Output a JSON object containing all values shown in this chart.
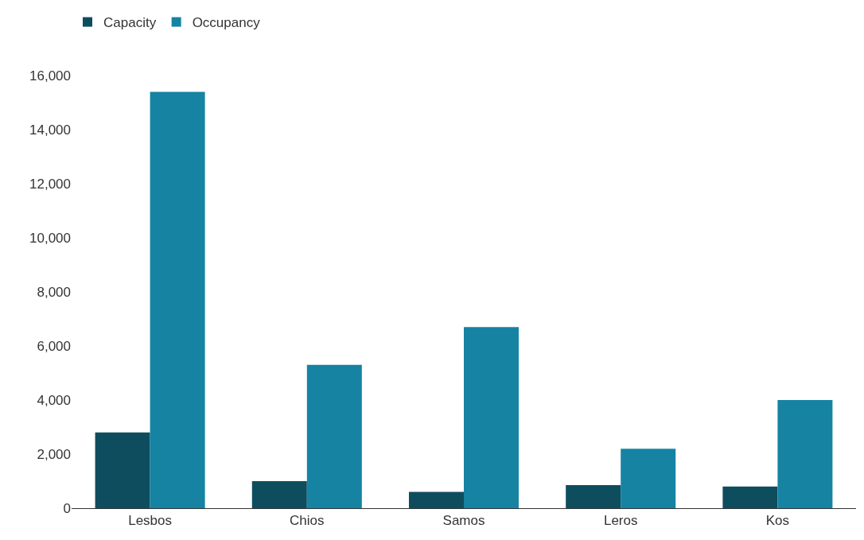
{
  "chart_data": {
    "type": "bar",
    "categories": [
      "Lesbos",
      "Chios",
      "Samos",
      "Leros",
      "Kos"
    ],
    "series": [
      {
        "name": "Capacity",
        "color": "#0e4d5e",
        "values": [
          2800,
          1000,
          600,
          850,
          800
        ]
      },
      {
        "name": "Occupancy",
        "color": "#1683a3",
        "values": [
          15400,
          5300,
          6700,
          2200,
          4000
        ]
      }
    ],
    "ylim": [
      0,
      16000
    ],
    "yticks": [
      {
        "value": 0,
        "label": "0"
      },
      {
        "value": 2000,
        "label": "2,000"
      },
      {
        "value": 4000,
        "label": "4,000"
      },
      {
        "value": 6000,
        "label": "6,000"
      },
      {
        "value": 8000,
        "label": "8,000"
      },
      {
        "value": 10000,
        "label": "10,000"
      },
      {
        "value": 12000,
        "label": "12,000"
      },
      {
        "value": 14000,
        "label": "14,000"
      },
      {
        "value": 16000,
        "label": "16,000"
      }
    ],
    "grid": false,
    "legend": "top left"
  }
}
